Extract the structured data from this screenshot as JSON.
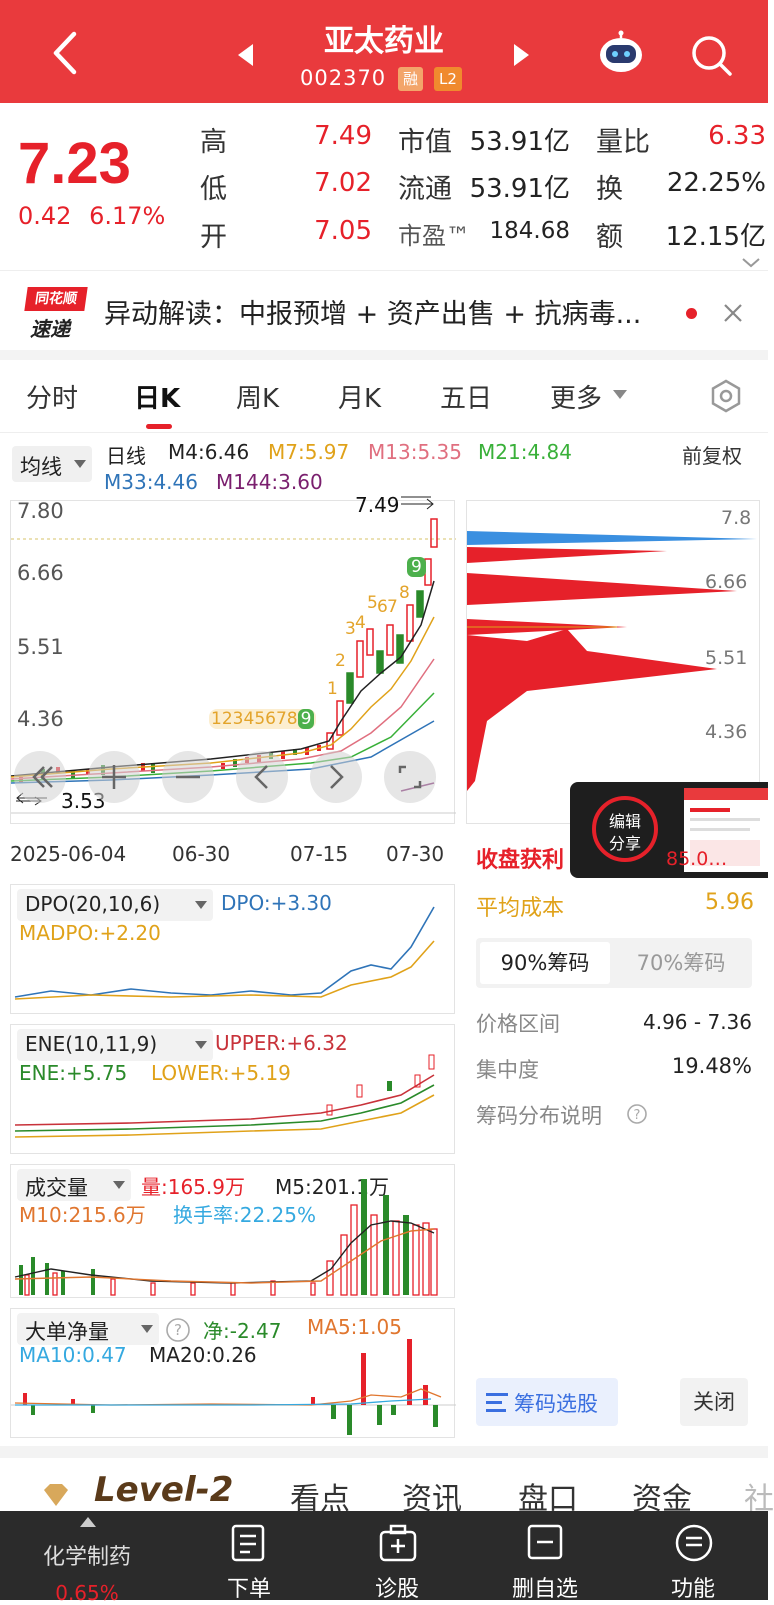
{
  "header": {
    "title": "亚太药业",
    "code": "002370",
    "badge_margin": "融",
    "badge_level": "L2"
  },
  "quote": {
    "price": "7.23",
    "change": "0.42",
    "change_pct": "6.17%",
    "high_label": "高",
    "high": "7.49",
    "low_label": "低",
    "low": "7.02",
    "open_label": "开",
    "open": "7.05",
    "mktcap_label": "市值",
    "mktcap": "53.91亿",
    "float_label": "流通",
    "float": "53.91亿",
    "pe_label": "市盈™",
    "pe": "184.68",
    "volratio_label": "量比",
    "volratio": "6.33",
    "turnover_label": "换",
    "turnover": "22.25%",
    "amount_label": "额",
    "amount": "12.15亿"
  },
  "news": {
    "logo_line1": "同花顺",
    "logo_line2": "速递",
    "text": "异动解读：中报预增 + 资产出售 + 抗病毒..."
  },
  "tabs": [
    "分时",
    "日K",
    "周K",
    "月K",
    "五日",
    "更多"
  ],
  "kline": {
    "ma_selector": "均线",
    "period": "日线",
    "fq": "前复权",
    "ma4": "M4:6.46",
    "ma7": "M7:5.97",
    "ma13": "M13:5.35",
    "ma21": "M21:4.84",
    "ma33": "M33:4.46",
    "ma144": "M144:3.60",
    "y_labels": [
      "7.80",
      "6.66",
      "5.51",
      "4.36"
    ],
    "high_marker": "7.49",
    "low_marker": "3.53",
    "dates": [
      "2025-06-04",
      "06-30",
      "07-15",
      "07-30"
    ],
    "seq_labels": [
      "1",
      "2",
      "3",
      "4",
      "5",
      "6",
      "7",
      "8",
      "9",
      "1",
      "2",
      "3",
      "4",
      "5",
      "6",
      "7",
      "8",
      "9"
    ]
  },
  "colors": {
    "red": "#e6212a",
    "green": "#2a8a2a",
    "ma4": "#222222",
    "ma7": "#e0a21a",
    "ma13": "#e06f7f",
    "ma21": "#39b039",
    "ma33": "#2f74b8",
    "ma144": "#7a1f6e"
  },
  "chips": {
    "y_labels": [
      "7.8",
      "6.66",
      "5.51",
      "4.36"
    ],
    "profit_label": "收盘获利",
    "profit_value": "85.0…",
    "avg_cost_label": "平均成本",
    "avg_cost": "5.96",
    "tab_90": "90%筹码",
    "tab_70": "70%筹码",
    "range_label": "价格区间",
    "range_value": "4.96 - 7.36",
    "conc_label": "集中度",
    "conc_value": "19.48%",
    "explain_label": "筹码分布说明",
    "select_button": "筹码选股",
    "close_button": "关闭"
  },
  "share_popup": {
    "line1": "编辑",
    "line2": "分享"
  },
  "dpo": {
    "name": "DPO(20,10,6)",
    "dpo": "DPO:+3.30",
    "madpo": "MADPO:+2.20"
  },
  "ene": {
    "name": "ENE(10,11,9)",
    "upper": "UPPER:+6.32",
    "ene": "ENE:+5.75",
    "lower": "LOWER:+5.19"
  },
  "volume": {
    "name": "成交量",
    "vol": "量:165.9万",
    "m5": "M5:201.1万",
    "m10": "M10:215.6万",
    "turnover": "换手率:22.25%"
  },
  "bigorder": {
    "name": "大单净量",
    "net": "净:-2.47",
    "ma5": "MA5:1.05",
    "ma10": "MA10:0.47",
    "ma20": "MA20:0.26"
  },
  "bottom_tabs": [
    "Level-2",
    "看点",
    "资讯",
    "盘口",
    "资金",
    "社"
  ],
  "bottom_nav": {
    "sector": "化学制药",
    "sector_change": "0.65%",
    "items": [
      "下单",
      "诊股",
      "删自选",
      "功能"
    ]
  }
}
